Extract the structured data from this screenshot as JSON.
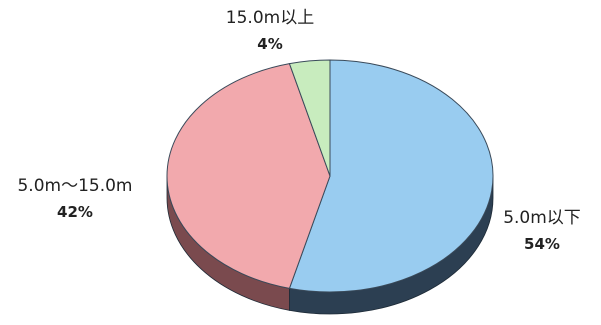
{
  "chart_data": {
    "type": "pie",
    "title": "",
    "style": "3d-tilted",
    "legend": "none",
    "slices": [
      {
        "label": "5.0m以下",
        "value": 54,
        "value_label": "54%",
        "color": "#99ccf0",
        "side_color": "#2c3f52"
      },
      {
        "label": "5.0m～15.0m",
        "value": 42,
        "value_label": "42%",
        "color": "#f2a9ad",
        "side_color": "#7a4a4e"
      },
      {
        "label": "15.0m以上",
        "value": 4,
        "value_label": "4%",
        "color": "#c8ecbe",
        "side_color": "#556b4e"
      }
    ]
  }
}
